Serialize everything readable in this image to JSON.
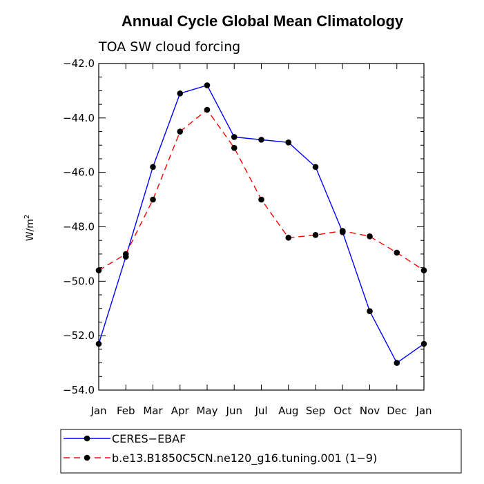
{
  "chart_data": {
    "type": "line",
    "title": "Annual Cycle Global Mean Climatology",
    "subtitle": "TOA SW cloud forcing",
    "ylabel": "W/m",
    "ylabel_superscript": "2",
    "categories": [
      "Jan",
      "Feb",
      "Mar",
      "Apr",
      "May",
      "Jun",
      "Jul",
      "Aug",
      "Sep",
      "Oct",
      "Nov",
      "Dec",
      "Jan"
    ],
    "ylim": [
      -54.0,
      -42.0
    ],
    "yticks": [
      -54.0,
      -52.0,
      -50.0,
      -48.0,
      -46.0,
      -44.0,
      -42.0
    ],
    "ytick_labels": [
      "−54.0",
      "−52.0",
      "−50.0",
      "−48.0",
      "−46.0",
      "−44.0",
      "−42.0"
    ],
    "grid": false,
    "legend_position": "bottom-left, below plot",
    "series": [
      {
        "name": "CERES−EBAF",
        "color": "#0000ff",
        "style": "solid",
        "values": [
          -52.3,
          -49.1,
          -45.8,
          -43.1,
          -42.8,
          -44.7,
          -44.8,
          -44.9,
          -45.8,
          -48.2,
          -51.1,
          -53.0,
          -52.3
        ]
      },
      {
        "name": "b.e13.B1850C5CN.ne120_g16.tuning.001 (1−9)",
        "color": "#ff0000",
        "style": "dashed",
        "values": [
          -49.6,
          -49.0,
          -47.0,
          -44.5,
          -43.7,
          -45.1,
          -47.0,
          -48.4,
          -48.3,
          -48.15,
          -48.35,
          -48.95,
          -49.6
        ]
      }
    ]
  }
}
